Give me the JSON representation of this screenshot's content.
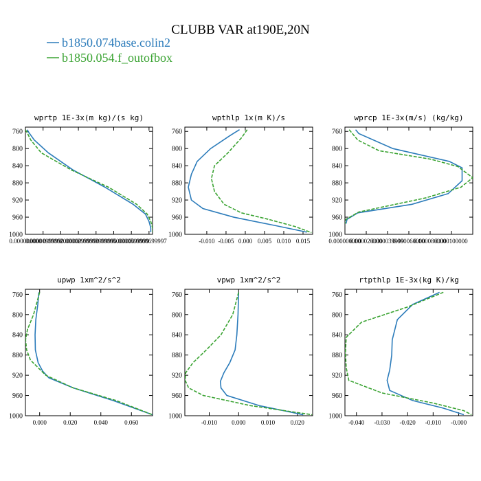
{
  "figure": {
    "title": "CLUBB VAR at190E,20N",
    "legend": [
      {
        "label": "b1850.074base.colin2",
        "color": "#2b7bba",
        "style": "solid"
      },
      {
        "label": "b1850.054.f_outofbox",
        "color": "#3aa332",
        "style": "dashed"
      }
    ]
  },
  "chart_data": [
    {
      "type": "line",
      "title": "wprtp  1E-3x(m kg)/(s kg)",
      "xlim": [
        0.0,
        7.2e-05
      ],
      "ylim": [
        1000,
        750
      ],
      "y_ticks": [
        760,
        800,
        840,
        880,
        920,
        960,
        1000
      ],
      "x_ticks": [
        0.0,
        1e-05,
        2e-05,
        3e-05,
        4e-05,
        5e-05,
        6e-05,
        7e-05
      ],
      "x_tick_labels": [
        "0.000000000",
        "0.0000099999",
        "0.0000200000",
        "0.0000299999",
        "0.0000399999",
        "0.0000500000",
        "0.0000599999",
        "0.0000699997"
      ],
      "series": [
        {
          "name": "b1850.074base.colin2",
          "x": [
            1e-06,
            2e-06,
            5e-06,
            1.3e-05,
            2.7e-05,
            4.5e-05,
            6.1e-05,
            6.8e-05,
            7e-05,
            7.1e-05,
            7.1e-05
          ],
          "y": [
            756,
            763,
            780,
            810,
            850,
            890,
            930,
            953,
            970,
            985,
            995
          ]
        },
        {
          "name": "b1850.054.f_outofbox",
          "x": [
            0.0,
            1e-06,
            3e-06,
            9e-06,
            2.6e-05,
            4.7e-05,
            6.3e-05,
            6.9e-05,
            7.1e-05,
            7.2e-05,
            7.2e-05
          ],
          "y": [
            756,
            763,
            780,
            810,
            850,
            890,
            930,
            953,
            970,
            985,
            995
          ]
        }
      ]
    },
    {
      "type": "line",
      "title": "wpthlp  1x(m K)/s",
      "xlim": [
        -0.0157,
        0.0175
      ],
      "ylim": [
        1000,
        750
      ],
      "y_ticks": [
        760,
        800,
        840,
        880,
        920,
        960,
        1000
      ],
      "x_ticks": [
        -0.01,
        -0.005,
        0.0,
        0.005,
        0.01,
        0.015
      ],
      "x_tick_labels": [
        "-0.010",
        "-0.005",
        "0.000",
        "0.005",
        "0.010",
        "0.015"
      ],
      "series": [
        {
          "name": "b1850.074base.colin2",
          "x": [
            -0.0015,
            -0.004,
            -0.009,
            -0.0125,
            -0.014,
            -0.0148,
            -0.014,
            -0.011,
            -0.003,
            0.008,
            0.016
          ],
          "y": [
            756,
            770,
            800,
            830,
            860,
            890,
            920,
            940,
            960,
            980,
            995
          ]
        },
        {
          "name": "b1850.054.f_outofbox",
          "x": [
            0.0005,
            -0.001,
            -0.0045,
            -0.008,
            -0.0088,
            -0.008,
            -0.0055,
            -0.001,
            0.006,
            0.013,
            0.0172
          ],
          "y": [
            756,
            775,
            810,
            840,
            870,
            900,
            930,
            950,
            965,
            982,
            996
          ]
        }
      ]
    },
    {
      "type": "line",
      "title": "wprcp  1E-3x(m/s) (kg/kg)",
      "xlim": [
        0.0,
        0.00012
      ],
      "ylim": [
        1000,
        750
      ],
      "y_ticks": [
        760,
        800,
        840,
        880,
        920,
        960,
        1000
      ],
      "x_ticks": [
        0.0,
        2e-05,
        4e-05,
        6e-05,
        8e-05,
        0.0001
      ],
      "x_tick_labels": [
        "0.000000000",
        "0.000020000",
        "0.000039999",
        "0.000060000",
        "0.000080000",
        "0.000100000"
      ],
      "series": [
        {
          "name": "b1850.074base.colin2",
          "x": [
            1e-05,
            1.3e-05,
            4.5e-05,
            9.8e-05,
            0.00011,
            0.00011,
            9.7e-05,
            6.3e-05,
            1.2e-05,
            2e-06,
            1e-06
          ],
          "y": [
            756,
            765,
            800,
            830,
            845,
            875,
            905,
            930,
            950,
            965,
            975
          ]
        },
        {
          "name": "b1850.054.f_outofbox",
          "x": [
            4e-06,
            1.2e-05,
            3.2e-05,
            8.1e-05,
            0.000106,
            0.00012,
            0.000109,
            7.6e-05,
            1.3e-05,
            1e-06,
            0.0
          ],
          "y": [
            756,
            780,
            805,
            825,
            842,
            868,
            890,
            915,
            948,
            965,
            975
          ]
        }
      ]
    },
    {
      "type": "line",
      "title": "upwp  1xm^2/s^2",
      "xlim": [
        -0.0093,
        0.0738
      ],
      "ylim": [
        1000,
        750
      ],
      "y_ticks": [
        760,
        800,
        840,
        880,
        920,
        960,
        1000
      ],
      "x_ticks": [
        0.0,
        0.02,
        0.04,
        0.06
      ],
      "x_tick_labels": [
        "0.000",
        "0.020",
        "0.040",
        "0.060"
      ],
      "series": [
        {
          "name": "b1850.074base.colin2",
          "x": [
            -0.0005,
            -0.0012,
            -0.0025,
            -0.003,
            -0.0028,
            -0.001,
            0.002,
            0.006,
            0.022,
            0.048,
            0.0737
          ],
          "y": [
            756,
            780,
            810,
            840,
            870,
            895,
            912,
            925,
            945,
            970,
            998
          ]
        },
        {
          "name": "b1850.054.f_outofbox",
          "x": [
            0.0,
            -0.004,
            -0.008,
            -0.0092,
            -0.0085,
            -0.006,
            -0.001,
            0.004,
            0.022,
            0.05,
            0.0737
          ],
          "y": [
            756,
            800,
            830,
            850,
            870,
            890,
            905,
            920,
            945,
            970,
            998
          ]
        }
      ]
    },
    {
      "type": "line",
      "title": "vpwp  1xm^2/s^2",
      "xlim": [
        -0.0183,
        0.0252
      ],
      "ylim": [
        1000,
        750
      ],
      "y_ticks": [
        760,
        800,
        840,
        880,
        920,
        960,
        1000
      ],
      "x_ticks": [
        -0.01,
        0.0,
        0.01,
        0.02
      ],
      "x_tick_labels": [
        "-0.010",
        "0.000",
        "0.010",
        "0.020"
      ],
      "series": [
        {
          "name": "b1850.074base.colin2",
          "x": [
            0.0,
            -0.0002,
            -0.0006,
            -0.0012,
            -0.003,
            -0.005,
            -0.0062,
            -0.006,
            -0.004,
            0.007,
            0.022
          ],
          "y": [
            756,
            800,
            840,
            870,
            895,
            915,
            932,
            945,
            960,
            980,
            998
          ]
        },
        {
          "name": "b1850.054.f_outofbox",
          "x": [
            0.0,
            -0.002,
            -0.006,
            -0.011,
            -0.0155,
            -0.018,
            -0.0182,
            -0.017,
            -0.012,
            0.004,
            0.025
          ],
          "y": [
            756,
            800,
            840,
            870,
            895,
            915,
            930,
            945,
            960,
            980,
            998
          ]
        }
      ]
    },
    {
      "type": "line",
      "title": "rtpthlp  1E-3x(kg K)/kg",
      "xlim": [
        -0.0445,
        0.0055
      ],
      "ylim": [
        1000,
        750
      ],
      "y_ticks": [
        760,
        800,
        840,
        880,
        920,
        960,
        1000
      ],
      "x_ticks": [
        -0.04,
        -0.03,
        -0.02,
        -0.01,
        0.0
      ],
      "x_tick_labels": [
        "-0.040",
        "-0.030",
        "-0.020",
        "-0.010",
        "-0.000"
      ],
      "series": [
        {
          "name": "b1850.074base.colin2",
          "x": [
            -0.0075,
            -0.018,
            -0.024,
            -0.026,
            -0.0262,
            -0.027,
            -0.028,
            -0.027,
            -0.018,
            -0.006,
            0.002
          ],
          "y": [
            756,
            780,
            810,
            850,
            880,
            910,
            930,
            950,
            970,
            985,
            998
          ]
        },
        {
          "name": "b1850.054.f_outofbox",
          "x": [
            -0.006,
            -0.02,
            -0.038,
            -0.044,
            -0.0443,
            -0.044,
            -0.043,
            -0.03,
            -0.01,
            0.002,
            0.005
          ],
          "y": [
            756,
            785,
            815,
            845,
            875,
            905,
            930,
            955,
            975,
            990,
            998
          ]
        }
      ]
    }
  ]
}
